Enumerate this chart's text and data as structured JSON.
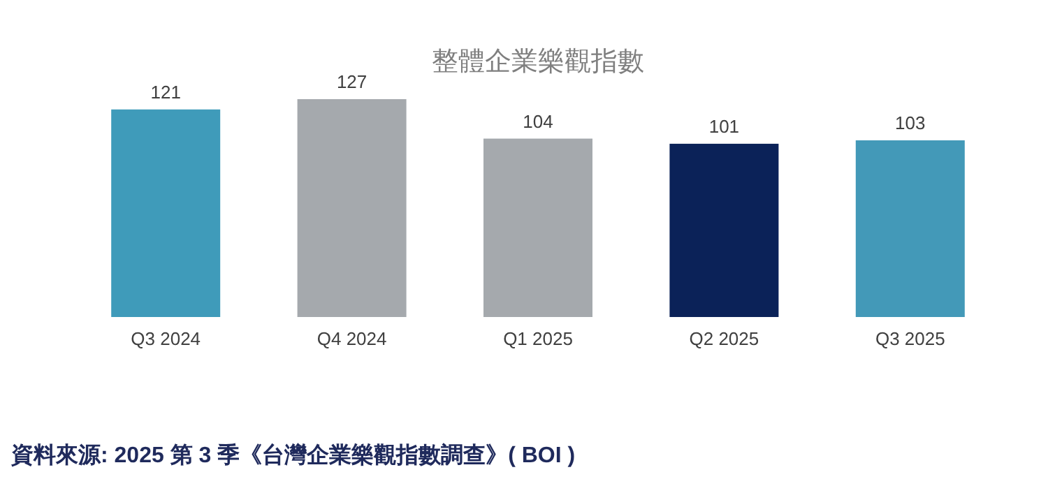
{
  "chart_data": {
    "type": "bar",
    "title": "整體企業樂觀指數",
    "categories": [
      "Q3 2024",
      "Q4 2024",
      "Q1 2025",
      "Q2 2025",
      "Q3 2025"
    ],
    "values": [
      121,
      127,
      104,
      101,
      103
    ],
    "colors": [
      "#3f9bba",
      "#a5a9ad",
      "#a5a9ad",
      "#0b2258",
      "#4399b8"
    ],
    "data_labels": true,
    "annotations": [
      "資料來源: 2025 第 3 季《台灣企業樂觀指數調查》( BOI )"
    ]
  }
}
